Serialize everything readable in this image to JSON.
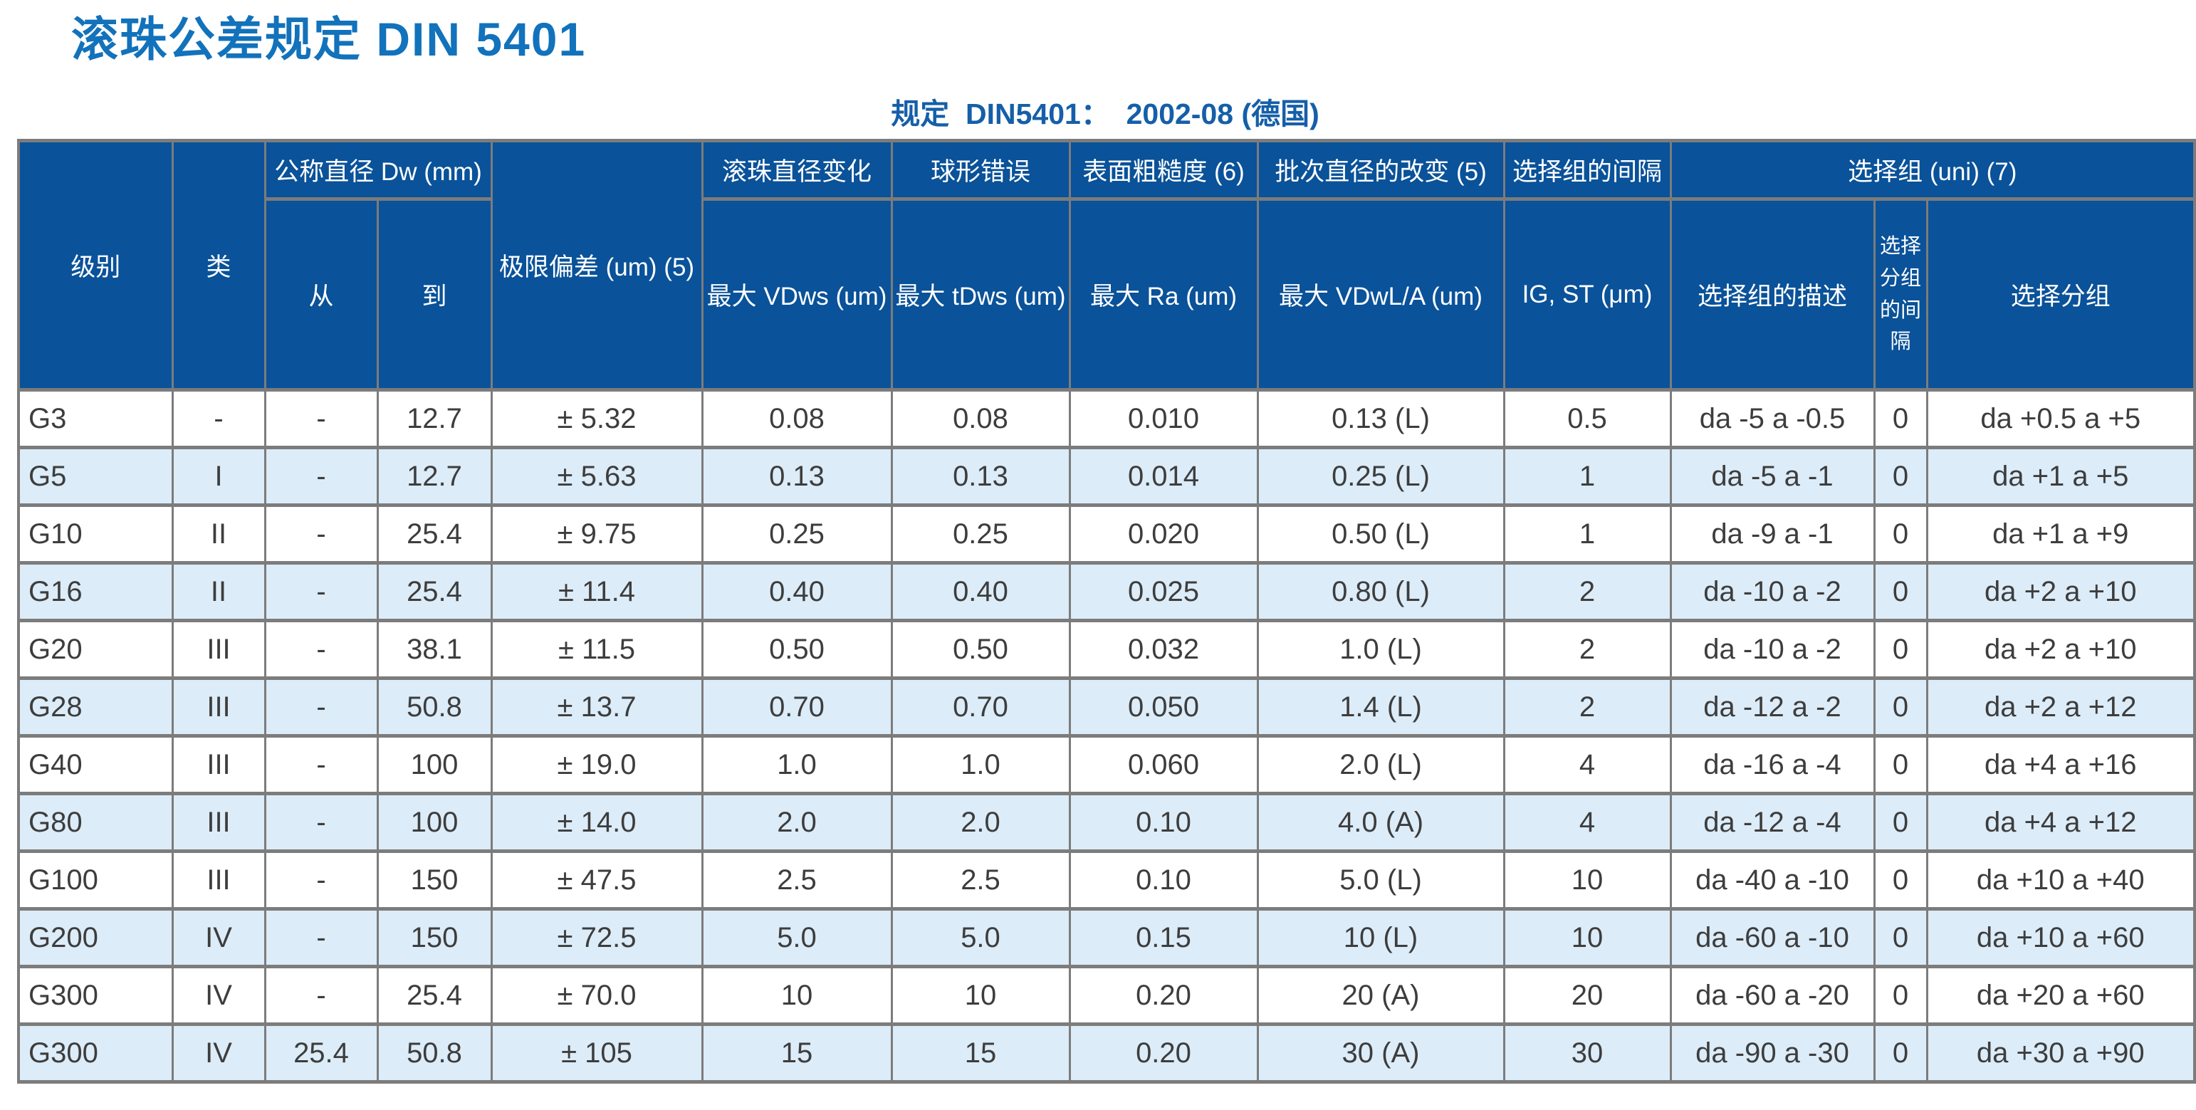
{
  "title": "滚珠公差规定 DIN 5401",
  "subtitle": "规定  DIN5401：  2002-08 (德国)",
  "colors": {
    "title_blue": "#1272bb",
    "subtitle_blue": "#155fa8",
    "header_bg": "#0a5299",
    "header_text": "#ffffff",
    "row_alt_bg": "#dcecf8",
    "row_bg": "#ffffff",
    "border_gray": "#7c7c7c",
    "cell_text": "#3d3d3d"
  },
  "table": {
    "header": {
      "level": "级别",
      "class": "类",
      "nominal_diameter_group": "公称直径 Dw (mm)",
      "from": "从",
      "to": "到",
      "limit_deviation": "极限偏差 (um) (5)",
      "ball_diameter_variation_group": "滚珠直径变化",
      "ball_diameter_variation_sub": "最大 VDws (um)",
      "spherical_error_group": "球形错误",
      "spherical_error_sub": "最大 tDws (um)",
      "surface_roughness_group": "表面粗糙度 (6)",
      "surface_roughness_sub": "最大 Ra (um)",
      "lot_diameter_change_group": "批次直径的改变 (5)",
      "lot_diameter_change_sub": "最大 VDwL/A (um)",
      "selection_group_interval_group": "选择组的间隔",
      "selection_group_interval_sub": "IG, ST (μm)",
      "selection_group_group": "选择组 (uni) (7)",
      "selection_group_desc": "选择组的描述",
      "selection_subgroup_interval": "选择分组的间隔",
      "selection_subgroup": "选择分组"
    },
    "rows": [
      [
        "G3",
        "-",
        "-",
        "12.7",
        "± 5.32",
        "0.08",
        "0.08",
        "0.010",
        "0.13 (L)",
        "0.5",
        "da -5 a -0.5",
        "0",
        "da +0.5 a +5"
      ],
      [
        "G5",
        "I",
        "-",
        "12.7",
        "± 5.63",
        "0.13",
        "0.13",
        "0.014",
        "0.25 (L)",
        "1",
        "da -5 a -1",
        "0",
        "da +1 a +5"
      ],
      [
        "G10",
        "II",
        "-",
        "25.4",
        "± 9.75",
        "0.25",
        "0.25",
        "0.020",
        "0.50 (L)",
        "1",
        "da -9 a -1",
        "0",
        "da +1 a +9"
      ],
      [
        "G16",
        "II",
        "-",
        "25.4",
        "± 11.4",
        "0.40",
        "0.40",
        "0.025",
        "0.80 (L)",
        "2",
        "da -10 a -2",
        "0",
        "da +2 a +10"
      ],
      [
        "G20",
        "III",
        "-",
        "38.1",
        "± 11.5",
        "0.50",
        "0.50",
        "0.032",
        "1.0 (L)",
        "2",
        "da -10 a -2",
        "0",
        "da +2 a +10"
      ],
      [
        "G28",
        "III",
        "-",
        "50.8",
        "± 13.7",
        "0.70",
        "0.70",
        "0.050",
        "1.4 (L)",
        "2",
        "da -12 a -2",
        "0",
        "da +2 a +12"
      ],
      [
        "G40",
        "III",
        "-",
        "100",
        "± 19.0",
        "1.0",
        "1.0",
        "0.060",
        "2.0 (L)",
        "4",
        "da -16 a -4",
        "0",
        "da +4 a +16"
      ],
      [
        "G80",
        "III",
        "-",
        "100",
        "± 14.0",
        "2.0",
        "2.0",
        "0.10",
        "4.0 (A)",
        "4",
        "da -12 a -4",
        "0",
        "da +4 a +12"
      ],
      [
        "G100",
        "III",
        "-",
        "150",
        "± 47.5",
        "2.5",
        "2.5",
        "0.10",
        "5.0 (L)",
        "10",
        "da -40 a -10",
        "0",
        "da +10 a +40"
      ],
      [
        "G200",
        "IV",
        "-",
        "150",
        "± 72.5",
        "5.0",
        "5.0",
        "0.15",
        "10 (L)",
        "10",
        "da -60 a -10",
        "0",
        "da +10 a +60"
      ],
      [
        "G300",
        "IV",
        "-",
        "25.4",
        "± 70.0",
        "10",
        "10",
        "0.20",
        "20 (A)",
        "20",
        "da -60 a -20",
        "0",
        "da +20 a +60"
      ],
      [
        "G300",
        "IV",
        "25.4",
        "50.8",
        "± 105",
        "15",
        "15",
        "0.20",
        "30 (A)",
        "30",
        "da -90 a -30",
        "0",
        "da +30 a +90"
      ]
    ]
  }
}
